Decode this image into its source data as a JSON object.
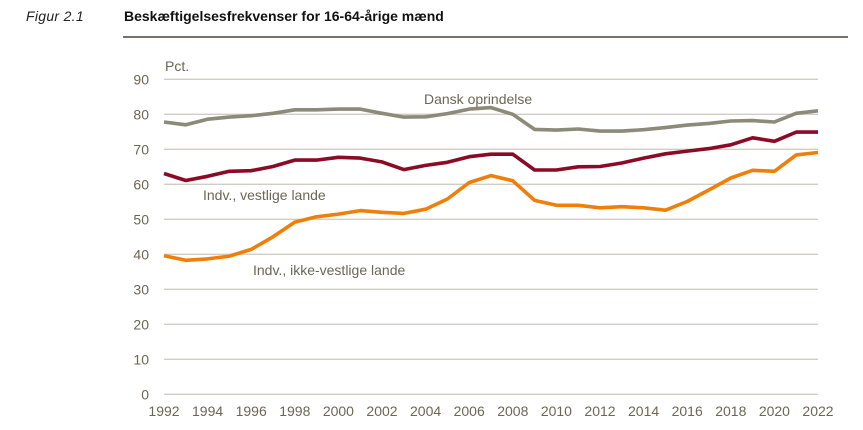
{
  "figure": {
    "label": "Figur 2.1",
    "title": "Beskæftigelsesfrekvenser for 16-64-årige mænd"
  },
  "chart_data": {
    "type": "line",
    "title": "Beskæftigelsesfrekvenser for 16-64-årige mænd",
    "ylabel": "Pct.",
    "xlabel": "",
    "ylim": [
      0,
      90
    ],
    "xlim": [
      1992,
      2022
    ],
    "grid": true,
    "yticks": [
      "0",
      "10",
      "20",
      "30",
      "40",
      "50",
      "60",
      "70",
      "80",
      "90"
    ],
    "xticks": [
      "1992",
      "1994",
      "1996",
      "1998",
      "2000",
      "2002",
      "2004",
      "2006",
      "2008",
      "2010",
      "2012",
      "2014",
      "2016",
      "2018",
      "2020",
      "2022"
    ],
    "x": [
      1992,
      1993,
      1994,
      1995,
      1996,
      1997,
      1998,
      1999,
      2000,
      2001,
      2002,
      2003,
      2004,
      2005,
      2006,
      2007,
      2008,
      2009,
      2010,
      2011,
      2012,
      2013,
      2014,
      2015,
      2016,
      2017,
      2018,
      2019,
      2020,
      2021,
      2022
    ],
    "series": [
      {
        "name": "Dansk oprindelse",
        "color": "#8c8a78",
        "values": [
          77.8,
          77.0,
          78.6,
          79.2,
          79.6,
          80.3,
          81.3,
          81.3,
          81.5,
          81.5,
          80.3,
          79.2,
          79.3,
          80.2,
          81.5,
          81.9,
          80.0,
          75.7,
          75.5,
          75.8,
          75.2,
          75.2,
          75.6,
          76.2,
          76.9,
          77.4,
          78.1,
          78.2,
          77.8,
          80.3,
          81.0
        ]
      },
      {
        "name": "Indv., vestlige lande",
        "color": "#8b0a26",
        "values": [
          63.1,
          61.1,
          62.3,
          63.7,
          63.9,
          65.1,
          66.9,
          66.9,
          67.7,
          67.5,
          66.4,
          64.2,
          65.4,
          66.3,
          67.9,
          68.6,
          68.6,
          64.1,
          64.1,
          65.0,
          65.1,
          66.1,
          67.5,
          68.7,
          69.5,
          70.2,
          71.3,
          73.3,
          72.3,
          74.9,
          74.9
        ]
      },
      {
        "name": "Indv., ikke-vestlige lande",
        "color": "#f07f0a",
        "values": [
          39.6,
          38.3,
          38.7,
          39.5,
          41.4,
          45.0,
          49.2,
          50.7,
          51.5,
          52.5,
          52.0,
          51.7,
          52.9,
          55.8,
          60.5,
          62.5,
          61.0,
          55.4,
          54.0,
          54.0,
          53.3,
          53.6,
          53.3,
          52.6,
          55.1,
          58.4,
          61.8,
          64.0,
          63.7,
          68.4,
          69.1
        ]
      }
    ]
  }
}
